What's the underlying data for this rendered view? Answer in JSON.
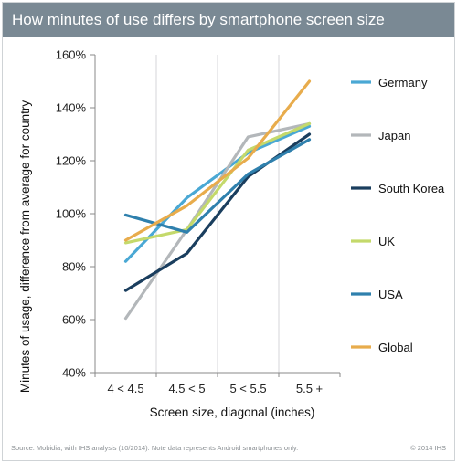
{
  "header": {
    "title": "How minutes of use differs by smartphone screen size"
  },
  "chart_data": {
    "type": "line",
    "title": "How minutes of use differs by smartphone screen size",
    "xlabel": "Screen size, diagonal (inches)",
    "ylabel": "Minutes of usage, difference from average for country",
    "categories": [
      "4 < 4.5",
      "4.5 < 5",
      "5 < 5.5",
      "5.5 +"
    ],
    "ylim": [
      40,
      160
    ],
    "yticks": [
      40,
      60,
      80,
      100,
      120,
      140,
      160
    ],
    "ytick_labels": [
      "40%",
      "60%",
      "80%",
      "100%",
      "120%",
      "140%",
      "160%"
    ],
    "grid": "vertical",
    "legend_position": "right",
    "series": [
      {
        "name": "Germany",
        "color": "#4aa8d4",
        "values": [
          82,
          106,
          123,
          133
        ]
      },
      {
        "name": "Japan",
        "color": "#b3b7ba",
        "values": [
          60.5,
          94,
          129,
          134
        ]
      },
      {
        "name": "South Korea",
        "color": "#1a3e5e",
        "values": [
          71,
          85,
          114,
          130
        ]
      },
      {
        "name": "UK",
        "color": "#c4d96b",
        "values": [
          89,
          94,
          124,
          134
        ]
      },
      {
        "name": "USA",
        "color": "#2f80ad",
        "values": [
          99.5,
          93,
          115,
          128
        ]
      },
      {
        "name": "Global",
        "color": "#e8ac4c",
        "values": [
          90,
          103,
          121,
          150
        ]
      }
    ]
  },
  "footer": {
    "source": "Source: Mobidia, with IHS analysis (10/2014). Note data represents Android smartphones only.",
    "copyright": "© 2014 IHS"
  }
}
